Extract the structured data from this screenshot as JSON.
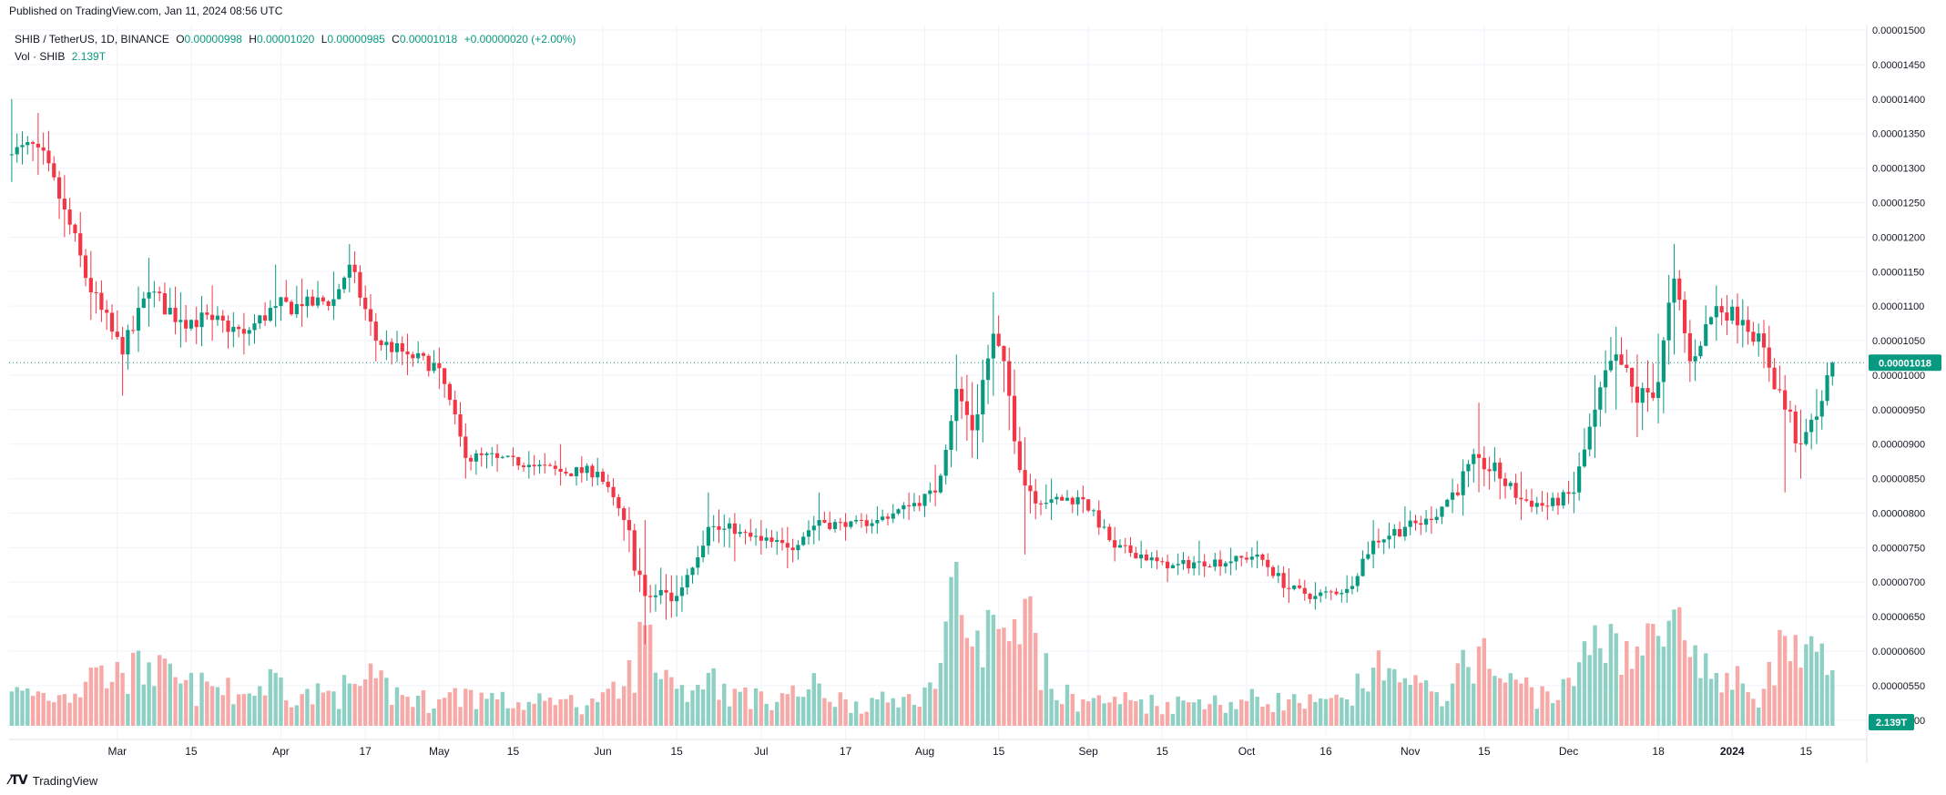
{
  "header": {
    "published": "Published on TradingView.com, Jan 11, 2024 08:56 UTC"
  },
  "legend": {
    "symbol": "SHIB / TetherUS, 1D, BINANCE",
    "open_label": "O",
    "open": "0.00000998",
    "high_label": "H",
    "high": "0.00001020",
    "low_label": "L",
    "low": "0.00000985",
    "close_label": "C",
    "close": "0.00001018",
    "change": "+0.00000020 (+2.00%)",
    "volume_label": "Vol · SHIB",
    "volume": "2.139T"
  },
  "footer": {
    "brand": "TradingView",
    "logo_icon": "tradingview-logo-icon"
  },
  "colors": {
    "up": "#089981",
    "down": "#f23645",
    "volume_up": "#8fd0c4",
    "volume_down": "#f7a9a7",
    "grid": "#f0f3fa",
    "axis_text": "#131722"
  },
  "chart_data": {
    "type": "candlestick",
    "title": "SHIB / TetherUS, 1D, BINANCE",
    "xlabel": "",
    "ylabel": "",
    "ylim": [
      4.72e-06,
      1.508e-05
    ],
    "y_ticks": [
      "0.00001500",
      "0.00001450",
      "0.00001400",
      "0.00001350",
      "0.00001300",
      "0.00001250",
      "0.00001200",
      "0.00001150",
      "0.00001100",
      "0.00001050",
      "0.00001000",
      "0.00000950",
      "0.00000900",
      "0.00000850",
      "0.00000800",
      "0.00000750",
      "0.00000700",
      "0.00000650",
      "0.00000600",
      "0.00000550",
      "0.00000500"
    ],
    "x_ticks": [
      {
        "label": "Mar",
        "day": 20,
        "major": true
      },
      {
        "label": "15",
        "day": 34,
        "major": false
      },
      {
        "label": "Apr",
        "day": 51,
        "major": true
      },
      {
        "label": "17",
        "day": 67,
        "major": false
      },
      {
        "label": "May",
        "day": 81,
        "major": true
      },
      {
        "label": "15",
        "day": 95,
        "major": false
      },
      {
        "label": "Jun",
        "day": 112,
        "major": true
      },
      {
        "label": "15",
        "day": 126,
        "major": false
      },
      {
        "label": "Jul",
        "day": 142,
        "major": true
      },
      {
        "label": "17",
        "day": 158,
        "major": false
      },
      {
        "label": "Aug",
        "day": 173,
        "major": true
      },
      {
        "label": "15",
        "day": 187,
        "major": false
      },
      {
        "label": "Sep",
        "day": 204,
        "major": true
      },
      {
        "label": "15",
        "day": 218,
        "major": false
      },
      {
        "label": "Oct",
        "day": 234,
        "major": true
      },
      {
        "label": "16",
        "day": 249,
        "major": false
      },
      {
        "label": "Nov",
        "day": 265,
        "major": true
      },
      {
        "label": "15",
        "day": 279,
        "major": false
      },
      {
        "label": "Dec",
        "day": 295,
        "major": true
      },
      {
        "label": "18",
        "day": 312,
        "major": false
      },
      {
        "label": "2024",
        "day": 326,
        "major": true
      },
      {
        "label": "15",
        "day": 340,
        "major": false
      }
    ],
    "last_price_label": "0.00001018",
    "last_price": 1.018e-05,
    "last_volume_label": "2.139T",
    "anchors": [
      [
        0,
        1.32e-05,
        1.4e-05,
        1.28e-05,
        1.3e-05
      ],
      [
        5,
        1.33e-05,
        1.38e-05,
        1.29e-05,
        1.3e-05
      ],
      [
        10,
        1.24e-05,
        1.29e-05,
        1.2e-05,
        1.2e-05
      ],
      [
        15,
        1.12e-05,
        1.18e-05,
        1.08e-05,
        2.2e-05
      ],
      [
        21,
        1.03e-05,
        1.07e-05,
        9.7e-06,
        2e-05
      ],
      [
        26,
        1.12e-05,
        1.17e-05,
        1.07e-05,
        2.4e-05
      ],
      [
        32,
        1.08e-05,
        1.12e-05,
        1.04e-05,
        1.6e-05
      ],
      [
        38,
        1.08e-05,
        1.13e-05,
        1.05e-05,
        1.5e-05
      ],
      [
        44,
        1.06e-05,
        1.09e-05,
        1.03e-05,
        1.2e-05
      ],
      [
        50,
        1.1e-05,
        1.16e-05,
        1.07e-05,
        2e-05
      ],
      [
        55,
        1.1e-05,
        1.14e-05,
        1.07e-05,
        1.2e-05
      ],
      [
        61,
        1.11e-05,
        1.15e-05,
        1.08e-05,
        1.3e-05
      ],
      [
        64,
        1.16e-05,
        1.19e-05,
        1.12e-05,
        1.6e-05
      ],
      [
        69,
        1.05e-05,
        1.09e-05,
        1.02e-05,
        1.8e-05
      ],
      [
        75,
        1.03e-05,
        1.06e-05,
        1e-05,
        1.1e-05
      ],
      [
        81,
        1.01e-05,
        1.04e-05,
        9.8e-06,
        1e-05
      ],
      [
        86,
        8.8e-06,
        9.3e-06,
        8.5e-06,
        1.4e-05
      ],
      [
        92,
        8.8e-06,
        9e-06,
        8.6e-06,
        1e-05
      ],
      [
        98,
        8.7e-06,
        8.9e-06,
        8.5e-06,
        9e-06
      ],
      [
        104,
        8.6e-06,
        9e-06,
        8.4e-06,
        1e-05
      ],
      [
        111,
        8.6e-06,
        8.8e-06,
        8.4e-06,
        9e-06
      ],
      [
        116,
        7.9e-06,
        8.1e-06,
        7.6e-06,
        1.5e-05
      ],
      [
        120,
        6.8e-06,
        7.9e-06,
        6.1e-06,
        3.8e-05
      ],
      [
        126,
        6.8e-06,
        7.1e-06,
        6.5e-06,
        1.4e-05
      ],
      [
        132,
        7.8e-06,
        8.3e-06,
        7.4e-06,
        2e-05
      ],
      [
        137,
        7.7e-06,
        8e-06,
        7.3e-06,
        1.4e-05
      ],
      [
        142,
        7.6e-06,
        7.9e-06,
        7.4e-06,
        1.3e-05
      ],
      [
        147,
        7.5e-06,
        7.8e-06,
        7.2e-06,
        1.2e-05
      ],
      [
        153,
        7.9e-06,
        8.3e-06,
        7.6e-06,
        1.6e-05
      ],
      [
        158,
        7.8e-06,
        8e-06,
        7.6e-06,
        1e-05
      ],
      [
        164,
        7.9e-06,
        8.1e-06,
        7.7e-06,
        1e-05
      ],
      [
        170,
        8.1e-06,
        8.3e-06,
        7.9e-06,
        1.2e-05
      ],
      [
        175,
        8.3e-06,
        8.7e-06,
        8.1e-06,
        1.4e-05
      ],
      [
        179,
        9.8e-06,
        1.03e-05,
        8.9e-06,
        6.2e-05
      ],
      [
        182,
        9.2e-06,
        9.9e-06,
        8.8e-06,
        3e-05
      ],
      [
        186,
        1.06e-05,
        1.12e-05,
        9.7e-06,
        4.2e-05
      ],
      [
        189,
        9.7e-06,
        1.04e-05,
        9.2e-06,
        3.2e-05
      ],
      [
        192,
        8.4e-06,
        9.1e-06,
        7.4e-06,
        4.8e-05
      ],
      [
        197,
        8.2e-06,
        8.5e-06,
        7.9e-06,
        1.4e-05
      ],
      [
        203,
        8.2e-06,
        8.4e-06,
        8e-06,
        1e-05
      ],
      [
        209,
        7.5e-06,
        7.8e-06,
        7.3e-06,
        1.1e-05
      ],
      [
        214,
        7.4e-06,
        7.6e-06,
        7.2e-06,
        1e-05
      ],
      [
        219,
        7.2e-06,
        7.4e-06,
        7e-06,
        9e-06
      ],
      [
        225,
        7.3e-06,
        7.6e-06,
        7.1e-06,
        1e-05
      ],
      [
        231,
        7.3e-06,
        7.5e-06,
        7.1e-06,
        9e-06
      ],
      [
        236,
        7.4e-06,
        7.6e-06,
        7.2e-06,
        1.1e-05
      ],
      [
        242,
        6.9e-06,
        7.2e-06,
        6.7e-06,
        1e-05
      ],
      [
        247,
        6.8e-06,
        7e-06,
        6.6e-06,
        9e-06
      ],
      [
        253,
        6.9e-06,
        7.1e-06,
        6.7e-06,
        1e-05
      ],
      [
        258,
        7.6e-06,
        7.9e-06,
        7.2e-06,
        2.2e-05
      ],
      [
        264,
        7.8e-06,
        8.1e-06,
        7.6e-06,
        1.8e-05
      ],
      [
        269,
        7.9e-06,
        8.1e-06,
        7.7e-06,
        1.3e-05
      ],
      [
        273,
        8.3e-06,
        8.5e-06,
        8e-06,
        1.6e-05
      ],
      [
        278,
        8.8e-06,
        9.6e-06,
        8.3e-06,
        3e-05
      ],
      [
        282,
        8.5e-06,
        8.8e-06,
        8.2e-06,
        1.8e-05
      ],
      [
        286,
        8.2e-06,
        8.6e-06,
        7.9e-06,
        1.6e-05
      ],
      [
        291,
        8.1e-06,
        8.3e-06,
        7.9e-06,
        1.3e-05
      ],
      [
        296,
        8.3e-06,
        8.6e-06,
        8e-06,
        1.5e-05
      ],
      [
        300,
        9.5e-06,
        1e-05,
        8.8e-06,
        3.8e-05
      ],
      [
        304,
        1.03e-05,
        1.07e-05,
        9.5e-06,
        3.5e-05
      ],
      [
        308,
        9.6e-06,
        1.03e-05,
        9.1e-06,
        3e-05
      ],
      [
        312,
        9.9e-06,
        1.06e-05,
        9.3e-06,
        3.4e-05
      ],
      [
        315,
        1.14e-05,
        1.19e-05,
        1.03e-05,
        4.4e-05
      ],
      [
        318,
        1.02e-05,
        1.08e-05,
        9.9e-06,
        2.6e-05
      ],
      [
        323,
        1.1e-05,
        1.13e-05,
        1.05e-05,
        2e-05
      ],
      [
        328,
        1.08e-05,
        1.11e-05,
        1.04e-05,
        1.6e-05
      ],
      [
        332,
        1.04e-05,
        1.08e-05,
        1.01e-05,
        1.4e-05
      ],
      [
        336,
        9.5e-06,
        1e-05,
        8.3e-06,
        3.4e-05
      ],
      [
        339,
        9e-06,
        9.5e-06,
        8.5e-06,
        2.2e-05
      ],
      [
        342,
        9.4e-06,
        9.8e-06,
        9e-06,
        2.8e-05
      ],
      [
        345,
        1.018e-05,
        1.02e-05,
        9.85e-06,
        2.1e-05
      ]
    ]
  }
}
